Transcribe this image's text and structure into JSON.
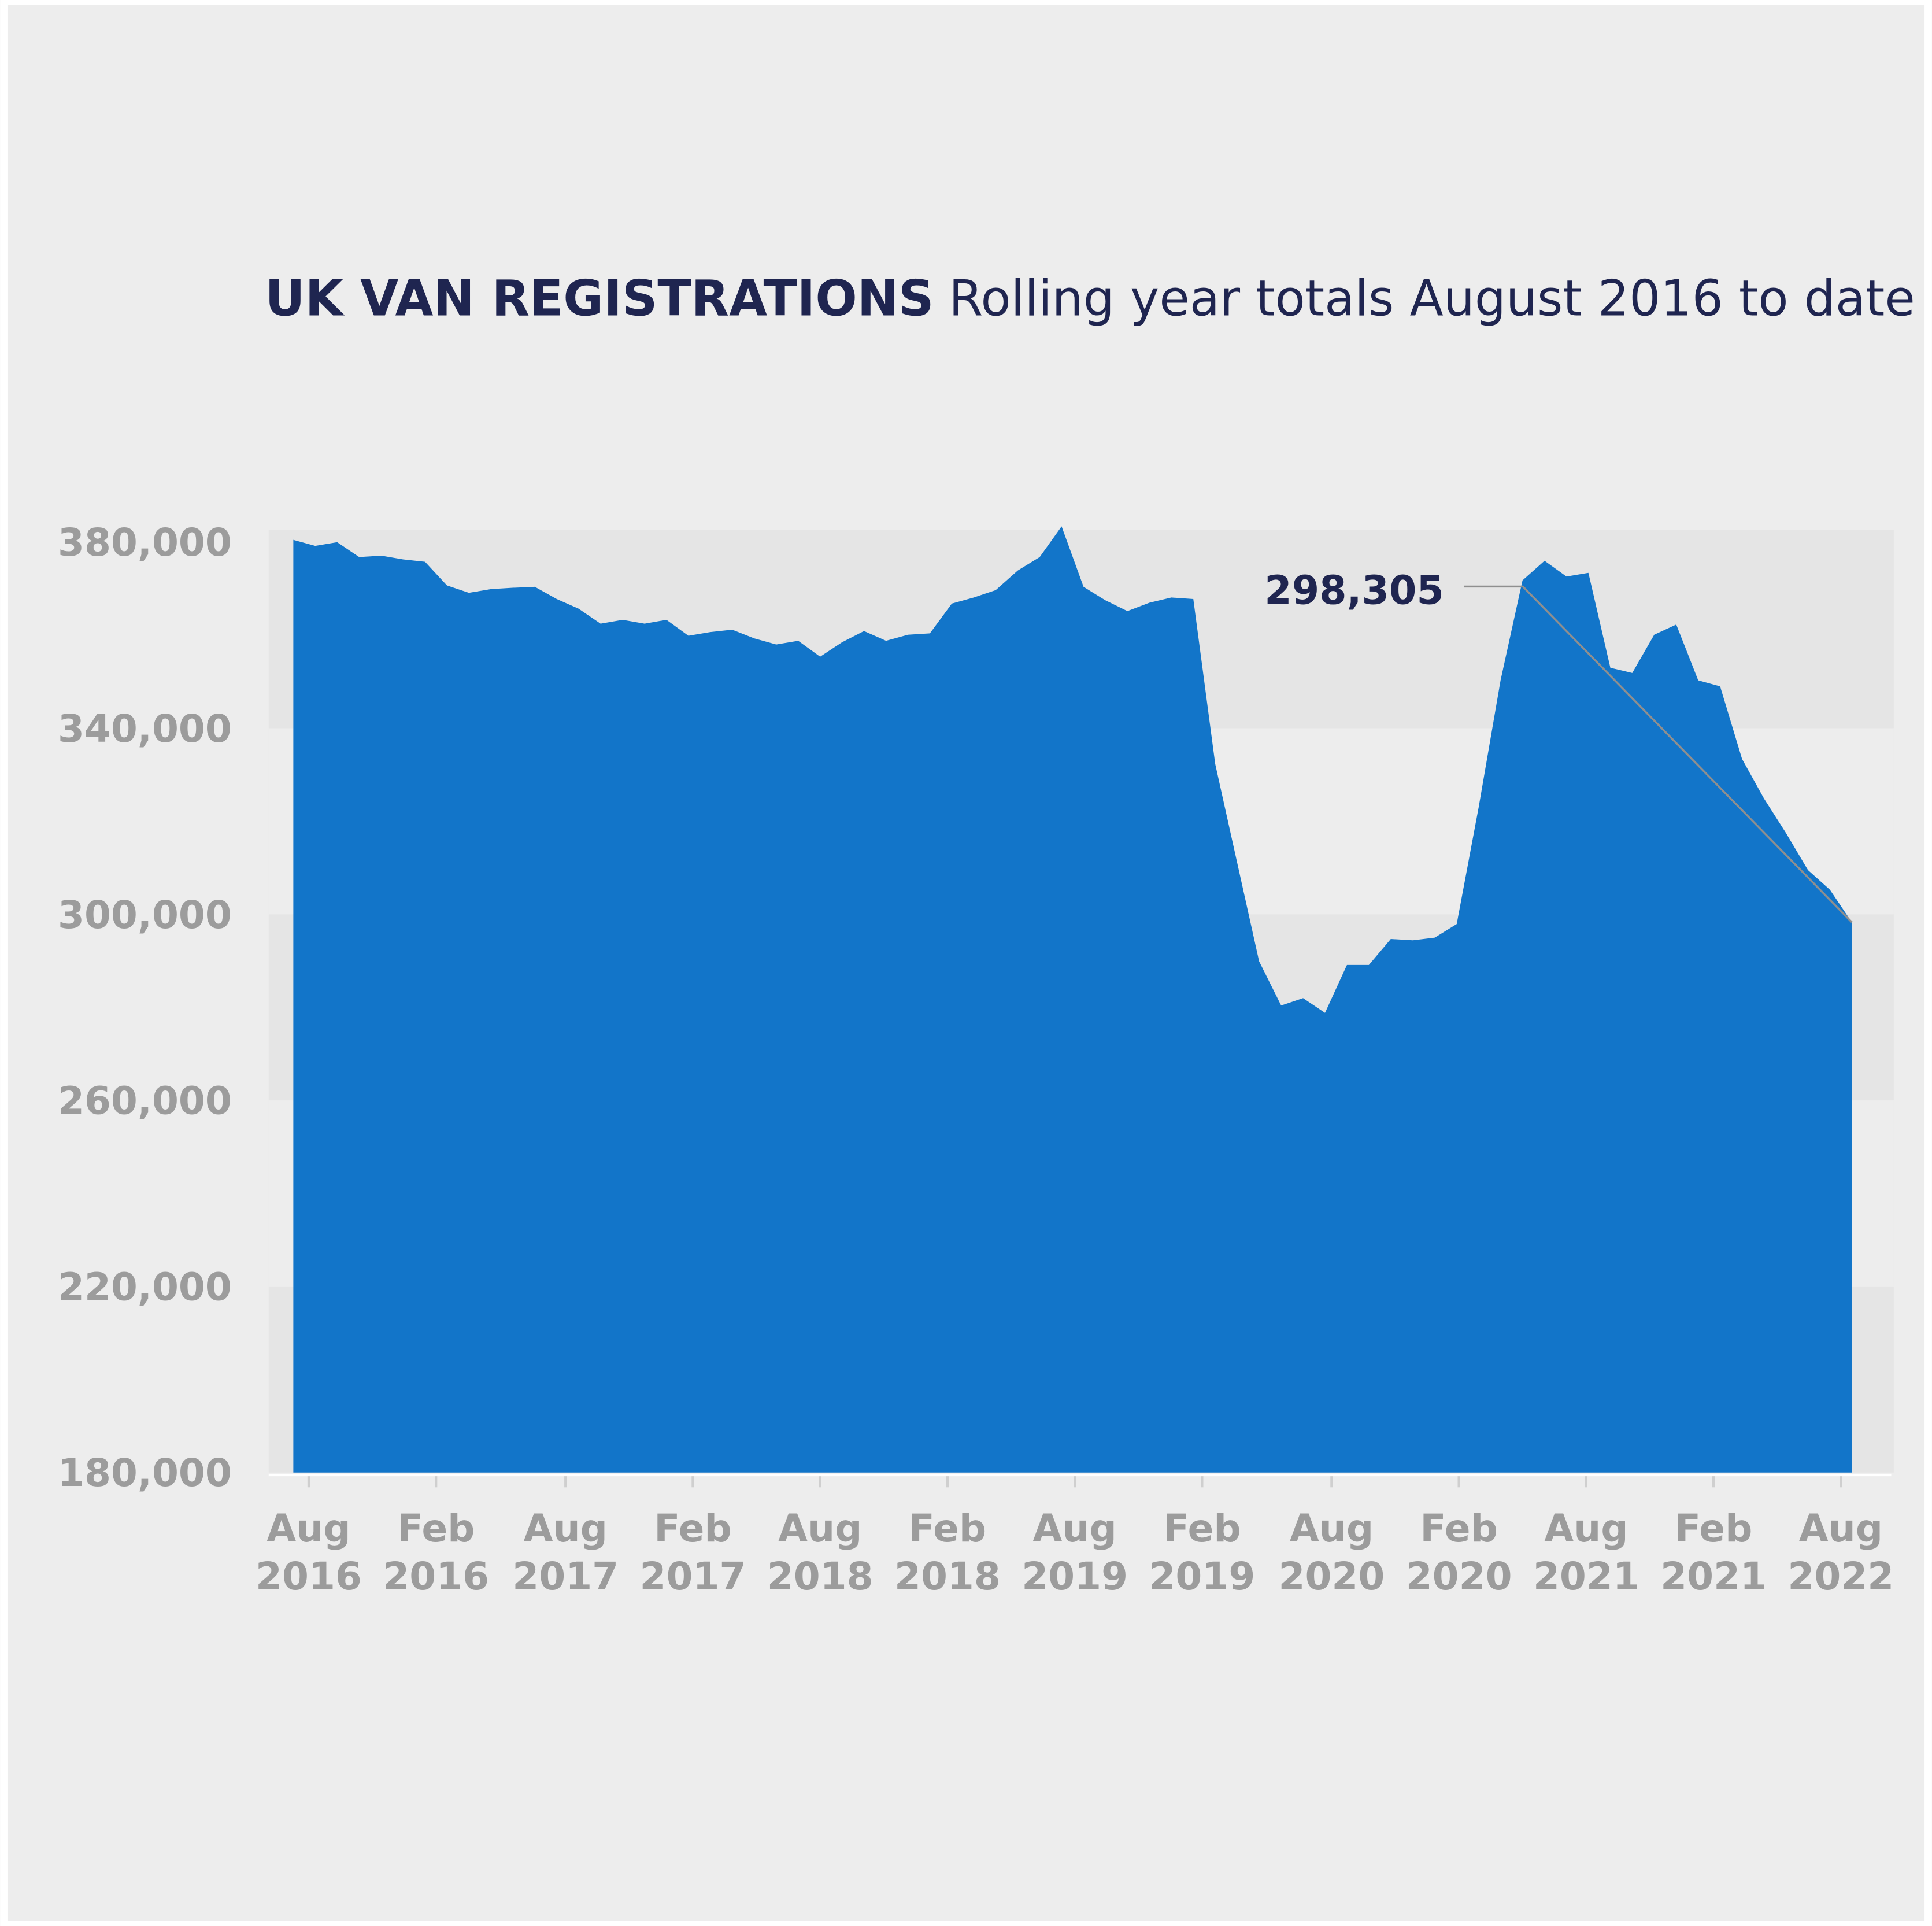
{
  "chart_data": {
    "type": "area",
    "title": "UK VAN REGISTRATIONS",
    "subtitle": "Rolling year totals August 2016 to date",
    "annotation": "298,305",
    "color": "#1275c9",
    "values": [
      380500,
      379200,
      380000,
      376800,
      377100,
      376300,
      375800,
      370700,
      369100,
      369900,
      370200,
      370400,
      367800,
      365700,
      362500,
      363300,
      362500,
      363300,
      359900,
      360700,
      361200,
      359300,
      358000,
      358800,
      355400,
      358500,
      360900,
      358800,
      360100,
      360400,
      366800,
      368100,
      369700,
      373900,
      376800,
      383400,
      370400,
      367500,
      365200,
      367000,
      368100,
      367800,
      332300,
      311100,
      289900,
      280400,
      282000,
      278800,
      289100,
      289100,
      294700,
      294400,
      295000,
      297900,
      323000,
      350300,
      371800,
      376000,
      372600,
      373400,
      353000,
      351900,
      360100,
      362300,
      350300,
      349000,
      333400,
      324900,
      317500,
      309500,
      305300,
      298305
    ],
    "xlim": [
      0,
      71
    ],
    "xticks": [
      {
        "value": 0.7,
        "label": [
          "Aug",
          "2016"
        ]
      },
      {
        "value": 6.5,
        "label": [
          "Feb",
          "2016"
        ]
      },
      {
        "value": 12.4,
        "label": [
          "Aug",
          "2017"
        ]
      },
      {
        "value": 18.2,
        "label": [
          "Feb",
          "2017"
        ]
      },
      {
        "value": 24.0,
        "label": [
          "Aug",
          "2018"
        ]
      },
      {
        "value": 29.8,
        "label": [
          "Feb",
          "2018"
        ]
      },
      {
        "value": 35.6,
        "label": [
          "Aug",
          "2019"
        ]
      },
      {
        "value": 41.4,
        "label": [
          "Feb",
          "2019"
        ]
      },
      {
        "value": 47.3,
        "label": [
          "Aug",
          "2020"
        ]
      },
      {
        "value": 53.1,
        "label": [
          "Feb",
          "2020"
        ]
      },
      {
        "value": 58.9,
        "label": [
          "Aug",
          "2021"
        ]
      },
      {
        "value": 64.7,
        "label": [
          "Feb",
          "2021"
        ]
      },
      {
        "value": 70.5,
        "label": [
          "Aug",
          "2022"
        ]
      }
    ],
    "ylim": [
      180000,
      380000
    ],
    "yticks": [
      {
        "value": 380000,
        "label": "380,000"
      },
      {
        "value": 340000,
        "label": "340,000"
      },
      {
        "value": 300000,
        "label": "300,000"
      },
      {
        "value": 260000,
        "label": "260,000"
      },
      {
        "value": 220000,
        "label": "220,000"
      },
      {
        "value": 180000,
        "label": "180,000"
      }
    ],
    "grid": "bands"
  }
}
